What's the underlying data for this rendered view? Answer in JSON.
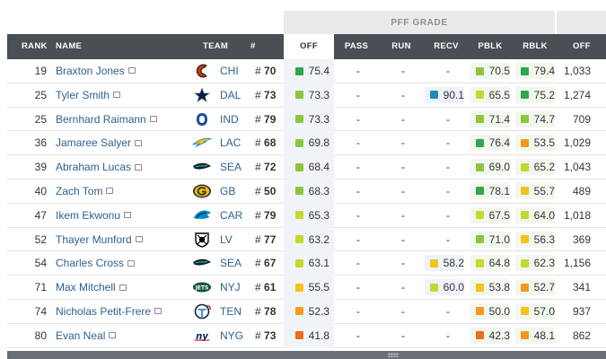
{
  "group_header": {
    "label": "PFF GRADE"
  },
  "columns": {
    "rank": "RANK",
    "name": "NAME",
    "team": "TEAM",
    "num": "#",
    "off": "OFF",
    "pass": "PASS",
    "run": "RUN",
    "recv": "RECV",
    "pblk": "PBLK",
    "rblk": "RBLK",
    "snaps": "OFF"
  },
  "colors": {
    "green": "#2da84a",
    "lightgreen": "#8cc63f",
    "yellowgreen": "#c4d82e",
    "yellow": "#f6c21b",
    "orange": "#f39a1d",
    "darkorange": "#ef6c1a",
    "teal": "#1a8fb0"
  },
  "players": [
    {
      "rank": "19",
      "name": "Braxton Jones",
      "team": "CHI",
      "logo": "bears-logo-icon",
      "num": "70",
      "off": {
        "v": "75.4",
        "c": "green"
      },
      "pass": "-",
      "run": "-",
      "recv": null,
      "pblk": {
        "v": "70.5",
        "c": "lightgreen"
      },
      "rblk": {
        "v": "79.4",
        "c": "green"
      },
      "snaps": "1,033"
    },
    {
      "rank": "25",
      "name": "Tyler Smith",
      "team": "DAL",
      "logo": "cowboys-logo-icon",
      "num": "73",
      "off": {
        "v": "73.3",
        "c": "lightgreen"
      },
      "pass": "-",
      "run": "-",
      "recv": {
        "v": "90.1",
        "c": "teal"
      },
      "pblk": {
        "v": "65.5",
        "c": "yellowgreen"
      },
      "rblk": {
        "v": "75.2",
        "c": "green"
      },
      "snaps": "1,274"
    },
    {
      "rank": "25",
      "name": "Bernhard Raimann",
      "team": "IND",
      "logo": "colts-logo-icon",
      "num": "79",
      "off": {
        "v": "73.3",
        "c": "lightgreen"
      },
      "pass": "-",
      "run": "-",
      "recv": null,
      "pblk": {
        "v": "71.4",
        "c": "lightgreen"
      },
      "rblk": {
        "v": "74.7",
        "c": "lightgreen"
      },
      "snaps": "709"
    },
    {
      "rank": "36",
      "name": "Jamaree Salyer",
      "team": "LAC",
      "logo": "chargers-logo-icon",
      "num": "68",
      "off": {
        "v": "69.8",
        "c": "lightgreen"
      },
      "pass": "-",
      "run": "-",
      "recv": null,
      "pblk": {
        "v": "76.4",
        "c": "green"
      },
      "rblk": {
        "v": "53.5",
        "c": "orange"
      },
      "snaps": "1,029"
    },
    {
      "rank": "39",
      "name": "Abraham Lucas",
      "team": "SEA",
      "logo": "seahawks-logo-icon",
      "num": "72",
      "off": {
        "v": "68.4",
        "c": "lightgreen"
      },
      "pass": "-",
      "run": "-",
      "recv": null,
      "pblk": {
        "v": "69.0",
        "c": "lightgreen"
      },
      "rblk": {
        "v": "65.2",
        "c": "yellowgreen"
      },
      "snaps": "1,043"
    },
    {
      "rank": "40",
      "name": "Zach Tom",
      "team": "GB",
      "logo": "packers-logo-icon",
      "num": "50",
      "off": {
        "v": "68.3",
        "c": "lightgreen"
      },
      "pass": "-",
      "run": "-",
      "recv": null,
      "pblk": {
        "v": "78.1",
        "c": "green"
      },
      "rblk": {
        "v": "55.7",
        "c": "yellow"
      },
      "snaps": "489"
    },
    {
      "rank": "47",
      "name": "Ikem Ekwonu",
      "team": "CAR",
      "logo": "panthers-logo-icon",
      "num": "79",
      "off": {
        "v": "65.3",
        "c": "yellowgreen"
      },
      "pass": "-",
      "run": "-",
      "recv": null,
      "pblk": {
        "v": "67.5",
        "c": "yellowgreen"
      },
      "rblk": {
        "v": "64.0",
        "c": "yellowgreen"
      },
      "snaps": "1,018"
    },
    {
      "rank": "52",
      "name": "Thayer Munford",
      "team": "LV",
      "logo": "raiders-logo-icon",
      "num": "77",
      "off": {
        "v": "63.2",
        "c": "yellowgreen"
      },
      "pass": "-",
      "run": "-",
      "recv": null,
      "pblk": {
        "v": "71.0",
        "c": "lightgreen"
      },
      "rblk": {
        "v": "56.3",
        "c": "yellow"
      },
      "snaps": "369"
    },
    {
      "rank": "54",
      "name": "Charles Cross",
      "team": "SEA",
      "logo": "seahawks-logo-icon",
      "num": "67",
      "off": {
        "v": "63.1",
        "c": "yellowgreen"
      },
      "pass": "-",
      "run": "-",
      "recv": {
        "v": "58.2",
        "c": "yellow"
      },
      "pblk": {
        "v": "64.8",
        "c": "yellowgreen"
      },
      "rblk": {
        "v": "62.3",
        "c": "yellowgreen"
      },
      "snaps": "1,156"
    },
    {
      "rank": "71",
      "name": "Max Mitchell",
      "team": "NYJ",
      "logo": "jets-logo-icon",
      "num": "61",
      "off": {
        "v": "55.5",
        "c": "yellow"
      },
      "pass": "-",
      "run": "-",
      "recv": {
        "v": "60.0",
        "c": "yellowgreen"
      },
      "pblk": {
        "v": "53.8",
        "c": "yellow"
      },
      "rblk": {
        "v": "52.7",
        "c": "orange"
      },
      "snaps": "341"
    },
    {
      "rank": "74",
      "name": "Nicholas Petit-Frere",
      "team": "TEN",
      "logo": "titans-logo-icon",
      "num": "78",
      "off": {
        "v": "52.3",
        "c": "orange"
      },
      "pass": "-",
      "run": "-",
      "recv": null,
      "pblk": {
        "v": "50.0",
        "c": "orange"
      },
      "rblk": {
        "v": "57.0",
        "c": "yellow"
      },
      "snaps": "937"
    },
    {
      "rank": "80",
      "name": "Evan Neal",
      "team": "NYG",
      "logo": "giants-logo-icon",
      "num": "73",
      "off": {
        "v": "41.8",
        "c": "darkorange"
      },
      "pass": "-",
      "run": "-",
      "recv": null,
      "pblk": {
        "v": "42.3",
        "c": "darkorange"
      },
      "rblk": {
        "v": "48.1",
        "c": "orange"
      },
      "snaps": "862"
    }
  ]
}
